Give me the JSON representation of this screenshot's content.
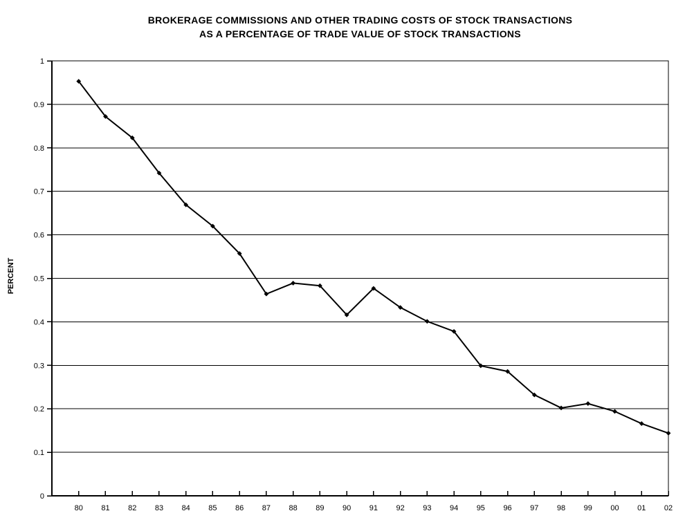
{
  "title": {
    "line1": "BROKERAGE COMMISSIONS AND OTHER TRADING COSTS OF STOCK TRANSACTIONS",
    "line2": "AS A PERCENTAGE OF TRADE VALUE OF STOCK TRANSACTIONS"
  },
  "y_axis": {
    "label": "PERCENT",
    "tick_labels": [
      "0",
      "0.1",
      "0.2",
      "0.3",
      "0.4",
      "0.5",
      "0.6",
      "0.7",
      "0.8",
      "0.9",
      "1"
    ]
  },
  "colors": {
    "line": "#000000",
    "grid": "#000000",
    "axis": "#000000",
    "background": "#ffffff",
    "text": "#000000"
  },
  "chart_data": {
    "type": "line",
    "title": "BROKERAGE COMMISSIONS AND OTHER TRADING COSTS OF STOCK TRANSACTIONS AS A PERCENTAGE OF TRADE VALUE OF STOCK TRANSACTIONS",
    "xlabel": "",
    "ylabel": "PERCENT",
    "ylim": [
      0,
      1
    ],
    "ytick_step": 0.1,
    "grid": "horizontal",
    "legend": "none",
    "marker": "diamond",
    "categories": [
      "80",
      "81",
      "82",
      "83",
      "84",
      "85",
      "86",
      "87",
      "88",
      "89",
      "90",
      "91",
      "92",
      "93",
      "94",
      "95",
      "96",
      "97",
      "98",
      "99",
      "00",
      "01",
      "02"
    ],
    "values": [
      0.953,
      0.872,
      0.823,
      0.742,
      0.669,
      0.62,
      0.557,
      0.464,
      0.489,
      0.483,
      0.416,
      0.477,
      0.433,
      0.401,
      0.378,
      0.299,
      0.286,
      0.232,
      0.202,
      0.212,
      0.194,
      0.166,
      0.144
    ]
  }
}
